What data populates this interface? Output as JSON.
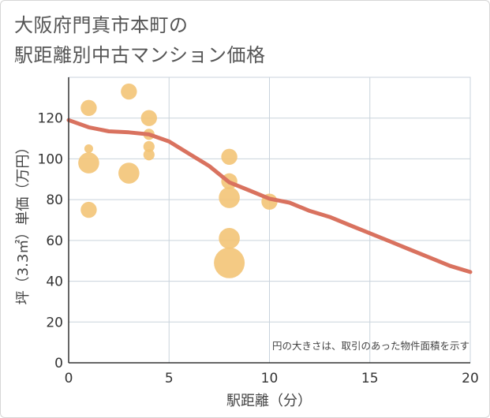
{
  "chart_data": {
    "type": "scatter",
    "title_lines": [
      "大阪府門真市本町の",
      "駅距離別中古マンション価格"
    ],
    "xlabel": "駅距離（分）",
    "ylabel": "坪（3.3㎡）単価（万円）",
    "xlim": [
      0,
      20
    ],
    "ylim": [
      0,
      140
    ],
    "x_ticks": [
      0,
      5,
      10,
      15,
      20
    ],
    "y_ticks": [
      0,
      20,
      40,
      60,
      80,
      100,
      120
    ],
    "annotation": "円の大きさは、取引のあった物件面積を示す",
    "colors": {
      "bubble": "#f3c477",
      "trend": "#d9725f",
      "grid": "#c9d3dc"
    },
    "bubbles": [
      {
        "x": 1,
        "y": 125,
        "size": 2
      },
      {
        "x": 1,
        "y": 105,
        "size": 0.5
      },
      {
        "x": 1,
        "y": 98,
        "size": 3
      },
      {
        "x": 1,
        "y": 75,
        "size": 2
      },
      {
        "x": 3,
        "y": 133,
        "size": 2
      },
      {
        "x": 3,
        "y": 93,
        "size": 3
      },
      {
        "x": 4,
        "y": 120,
        "size": 2
      },
      {
        "x": 4,
        "y": 112,
        "size": 1
      },
      {
        "x": 4,
        "y": 106,
        "size": 1
      },
      {
        "x": 4,
        "y": 102,
        "size": 1
      },
      {
        "x": 8,
        "y": 101,
        "size": 2
      },
      {
        "x": 8,
        "y": 89,
        "size": 2
      },
      {
        "x": 8,
        "y": 81,
        "size": 3
      },
      {
        "x": 8,
        "y": 61,
        "size": 3
      },
      {
        "x": 8,
        "y": 49,
        "size": 5
      },
      {
        "x": 10,
        "y": 79,
        "size": 2
      }
    ],
    "trend": {
      "x": [
        0,
        1,
        2,
        3,
        4,
        5,
        6,
        7,
        8,
        9,
        10,
        11,
        12,
        13,
        14,
        15,
        16,
        17,
        18,
        19,
        20
      ],
      "y": [
        119,
        115.5,
        113.5,
        113,
        112,
        108.5,
        102.5,
        96.5,
        88.5,
        84.5,
        80.5,
        78.5,
        74.5,
        71.5,
        67.5,
        63.5,
        59.5,
        55.5,
        51.5,
        47.5,
        44.5
      ]
    }
  }
}
